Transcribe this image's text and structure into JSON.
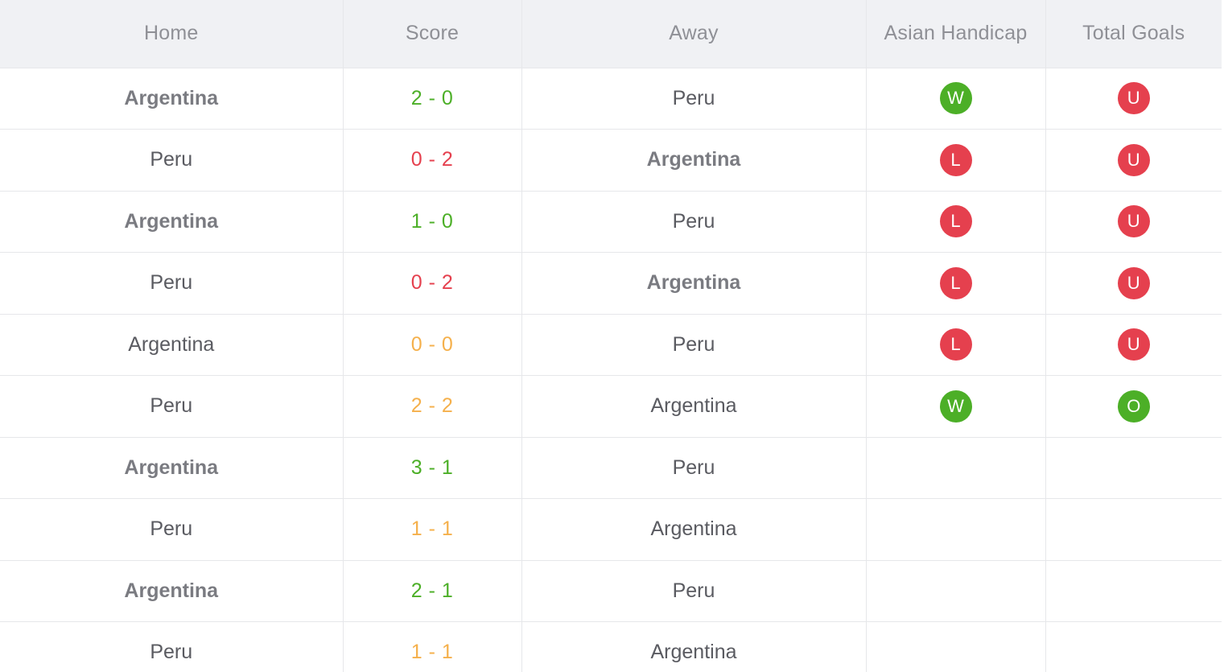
{
  "headers": {
    "home": "Home",
    "score": "Score",
    "away": "Away",
    "asian_handicap": "Asian Handicap",
    "total_goals": "Total Goals"
  },
  "colors": {
    "win": "#4caf27",
    "loss": "#e5404e",
    "draw": "#f5b04b"
  },
  "rows": [
    {
      "home": "Argentina",
      "score": "2 - 0",
      "away": "Peru",
      "winner": "home",
      "ah": "W",
      "tg": "U"
    },
    {
      "home": "Peru",
      "score": "0 - 2",
      "away": "Argentina",
      "winner": "away",
      "ah": "L",
      "tg": "U"
    },
    {
      "home": "Argentina",
      "score": "1 - 0",
      "away": "Peru",
      "winner": "home",
      "ah": "L",
      "tg": "U"
    },
    {
      "home": "Peru",
      "score": "0 - 2",
      "away": "Argentina",
      "winner": "away",
      "ah": "L",
      "tg": "U"
    },
    {
      "home": "Argentina",
      "score": "0 - 0",
      "away": "Peru",
      "winner": "draw",
      "ah": "L",
      "tg": "U"
    },
    {
      "home": "Peru",
      "score": "2 - 2",
      "away": "Argentina",
      "winner": "draw",
      "ah": "W",
      "tg": "O"
    },
    {
      "home": "Argentina",
      "score": "3 - 1",
      "away": "Peru",
      "winner": "home",
      "ah": "",
      "tg": ""
    },
    {
      "home": "Peru",
      "score": "1 - 1",
      "away": "Argentina",
      "winner": "draw",
      "ah": "",
      "tg": ""
    },
    {
      "home": "Argentina",
      "score": "2 - 1",
      "away": "Peru",
      "winner": "home",
      "ah": "",
      "tg": ""
    },
    {
      "home": "Peru",
      "score": "1 - 1",
      "away": "Argentina",
      "winner": "draw",
      "ah": "",
      "tg": ""
    }
  ]
}
